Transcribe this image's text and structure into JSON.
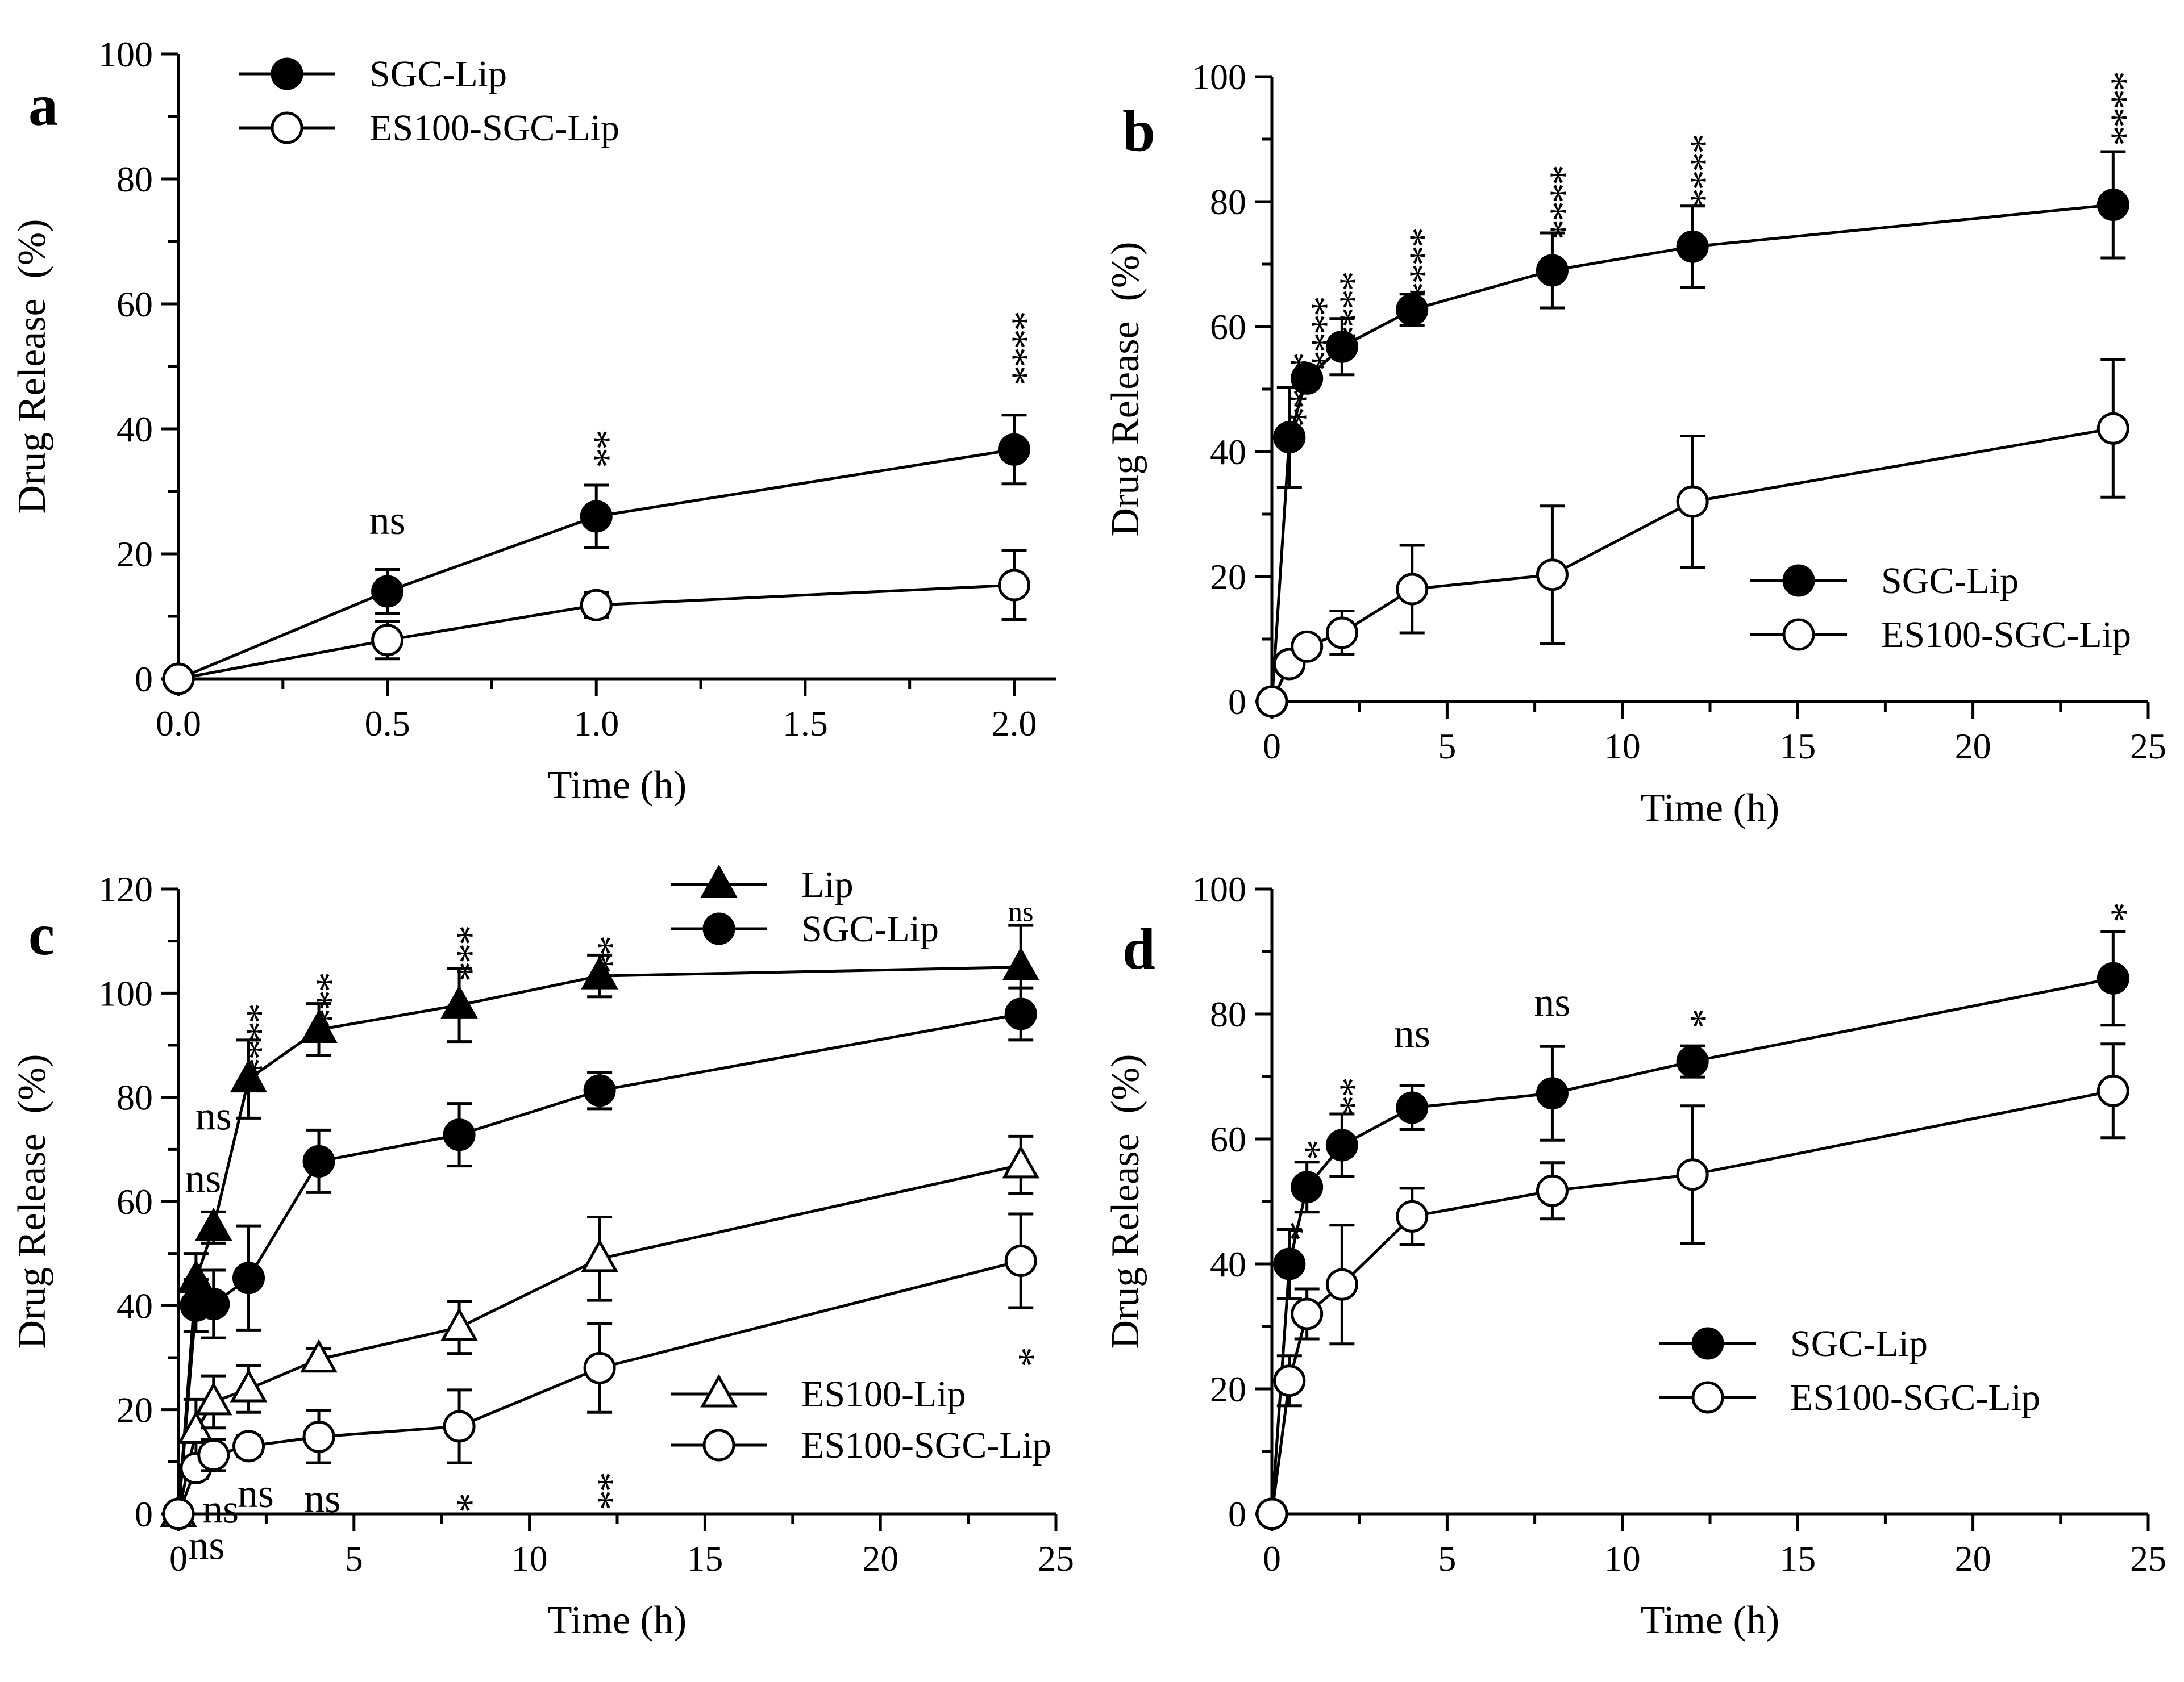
{
  "chart_data": [
    {
      "panel": "a",
      "type": "line",
      "xlabel": "Time (h)",
      "ylabel": "Drug Release  (%)",
      "xlim": [
        0,
        2.1
      ],
      "ylim": [
        0,
        100
      ],
      "xticks": [
        "0.0",
        "0.5",
        "1.0",
        "1.5",
        "2.0"
      ],
      "yticks": [
        "0",
        "20",
        "40",
        "60",
        "80",
        "100"
      ],
      "legend": "top-left",
      "series": [
        {
          "name": "SGC-Lip",
          "marker": "filled-circle",
          "x": [
            0,
            0.5,
            1,
            2
          ],
          "y": [
            0,
            14,
            26,
            36.7
          ],
          "err": [
            0,
            3.5,
            5,
            5.5
          ]
        },
        {
          "name": "ES100-SGC-Lip",
          "marker": "open-circle",
          "x": [
            0,
            0.5,
            1,
            2
          ],
          "y": [
            0,
            6.2,
            11.8,
            15
          ],
          "err": [
            0,
            3,
            2,
            5.5
          ]
        }
      ],
      "annotations": [
        {
          "text": "ns",
          "x": 0.5,
          "y": 25,
          "size": "normal"
        },
        {
          "text": "**",
          "x": 1,
          "y": 39,
          "size": "normal"
        },
        {
          "text": "****",
          "x": 2,
          "y": 58,
          "size": "normal"
        }
      ]
    },
    {
      "panel": "b",
      "type": "line",
      "xlabel": "Time (h)",
      "ylabel": "Drug Release  (%)",
      "xlim": [
        0,
        25
      ],
      "ylim": [
        0,
        100
      ],
      "xticks": [
        "0",
        "5",
        "10",
        "15",
        "20",
        "25"
      ],
      "yticks": [
        "0",
        "20",
        "40",
        "60",
        "80",
        "100"
      ],
      "legend": "bottom-right",
      "series": [
        {
          "name": "SGC-Lip",
          "marker": "filled-circle",
          "x": [
            0,
            0.5,
            1,
            2,
            4,
            8,
            12,
            24
          ],
          "y": [
            0,
            42.3,
            51.7,
            56.8,
            62.7,
            69,
            72.8,
            79.5
          ],
          "err": [
            0,
            8,
            0,
            4.5,
            2.5,
            6,
            6.5,
            8.5
          ]
        },
        {
          "name": "ES100-SGC-Lip",
          "marker": "open-circle",
          "x": [
            0,
            0.5,
            1,
            2,
            4,
            8,
            12,
            24
          ],
          "y": [
            0,
            6,
            8.8,
            11,
            18,
            20.3,
            32,
            43.7
          ],
          "err": [
            0,
            1.5,
            1,
            3.5,
            7,
            11,
            10.5,
            11
          ]
        }
      ],
      "annotations": [
        {
          "text": "****",
          "x": 0.6,
          "y": 55,
          "size": "normal"
        },
        {
          "text": "****",
          "x": 1.2,
          "y": 64,
          "size": "normal"
        },
        {
          "text": "****",
          "x": 2.0,
          "y": 68,
          "size": "normal"
        },
        {
          "text": "****",
          "x": 4,
          "y": 75,
          "size": "normal"
        },
        {
          "text": "****",
          "x": 8,
          "y": 85,
          "size": "normal"
        },
        {
          "text": "****",
          "x": 12,
          "y": 90,
          "size": "normal"
        },
        {
          "text": "****",
          "x": 24,
          "y": 100,
          "size": "normal"
        }
      ]
    },
    {
      "panel": "c",
      "type": "line",
      "xlabel": "Time (h)",
      "ylabel": "Drug Release  (%)",
      "xlim": [
        0,
        25
      ],
      "ylim": [
        0,
        120
      ],
      "xticks": [
        "0",
        "5",
        "10",
        "15",
        "20",
        "25"
      ],
      "yticks": [
        "0",
        "20",
        "40",
        "60",
        "80",
        "100",
        "120"
      ],
      "legend": "top-center and bottom-right",
      "series": [
        {
          "name": "Lip",
          "marker": "filled-triangle",
          "x": [
            0,
            0.5,
            1,
            2,
            4,
            8,
            12,
            24
          ],
          "y": [
            0,
            45,
            55,
            83.5,
            93,
            97.7,
            103.3,
            105
          ],
          "err": [
            0,
            5,
            3,
            7.5,
            5,
            7,
            4,
            8
          ]
        },
        {
          "name": "SGC-Lip",
          "marker": "filled-circle",
          "x": [
            0,
            0.5,
            1,
            2,
            4,
            8,
            12,
            24
          ],
          "y": [
            0,
            40,
            40.3,
            45.3,
            67.7,
            72.8,
            81.3,
            96
          ],
          "err": [
            0,
            5,
            6.5,
            10,
            6,
            6,
            3.5,
            5
          ]
        },
        {
          "name": "ES100-Lip",
          "marker": "open-triangle",
          "x": [
            0,
            0.5,
            1,
            2,
            4,
            8,
            12,
            24
          ],
          "y": [
            0,
            16,
            21.5,
            24,
            29.7,
            35.8,
            49,
            67
          ],
          "err": [
            0,
            6,
            5,
            4.5,
            2,
            5,
            8,
            5.5
          ]
        },
        {
          "name": "ES100-SGC-Lip",
          "marker": "open-circle",
          "x": [
            0,
            0.5,
            1,
            2,
            4,
            8,
            12,
            24
          ],
          "y": [
            0,
            8.8,
            11.3,
            13,
            14.8,
            16.8,
            28,
            48.6
          ],
          "err": [
            0,
            2,
            3,
            2,
            5,
            7,
            8.5,
            9
          ]
        }
      ],
      "annotations": [
        {
          "text": "ns",
          "x": 1.0,
          "y": 76,
          "size": "normal"
        },
        {
          "text": "ns",
          "x": 0.7,
          "y": 64,
          "size": "normal"
        },
        {
          "text": "****",
          "x": 2,
          "y": 97,
          "size": "normal"
        },
        {
          "text": "***",
          "x": 4,
          "y": 103,
          "size": "normal"
        },
        {
          "text": "***",
          "x": 8,
          "y": 112,
          "size": "normal"
        },
        {
          "text": "**",
          "x": 12,
          "y": 110,
          "size": "normal"
        },
        {
          "text": "ns",
          "x": 24,
          "y": 116,
          "size": "small"
        },
        {
          "text": "ns",
          "x": 1.2,
          "y": 0.5,
          "size": "normal"
        },
        {
          "text": "ns",
          "x": 2.2,
          "y": 3.5,
          "size": "normal"
        },
        {
          "text": "ns",
          "x": 4.1,
          "y": 2.5,
          "size": "normal"
        },
        {
          "text": "ns",
          "x": 0.8,
          "y": -6.5,
          "size": "normal"
        },
        {
          "text": "*",
          "x": 8,
          "y": 3,
          "size": "normal"
        },
        {
          "text": "**",
          "x": 12,
          "y": 7,
          "size": "normal"
        },
        {
          "text": "*",
          "x": 24,
          "y": 31,
          "size": "normal"
        }
      ],
      "legend_groups": [
        {
          "position": "top",
          "series": [
            "Lip",
            "SGC-Lip"
          ]
        },
        {
          "position": "bottom-right",
          "series": [
            "ES100-Lip",
            "ES100-SGC-Lip"
          ]
        }
      ]
    },
    {
      "panel": "d",
      "type": "line",
      "xlabel": "Time (h)",
      "ylabel": "Drug Release  (%)",
      "xlim": [
        0,
        25
      ],
      "ylim": [
        0,
        100
      ],
      "xticks": [
        "0",
        "5",
        "10",
        "15",
        "20",
        "25"
      ],
      "yticks": [
        "0",
        "20",
        "40",
        "60",
        "80",
        "100"
      ],
      "legend": "bottom-center",
      "series": [
        {
          "name": "SGC-Lip",
          "marker": "filled-circle",
          "x": [
            0,
            0.5,
            1,
            2,
            4,
            8,
            12,
            24
          ],
          "y": [
            0,
            40,
            52.3,
            59,
            65,
            67.3,
            72.4,
            85.7
          ],
          "err": [
            0,
            5.5,
            4,
            5,
            3.5,
            7.5,
            2.5,
            7.5
          ]
        },
        {
          "name": "ES100-SGC-Lip",
          "marker": "open-circle",
          "x": [
            0,
            0.5,
            1,
            2,
            4,
            8,
            12,
            24
          ],
          "y": [
            0,
            21.3,
            32,
            36.7,
            47.6,
            51.7,
            54.3,
            67.7
          ],
          "err": [
            0,
            4,
            4,
            9.5,
            4.5,
            4.5,
            11,
            7.5
          ]
        }
      ],
      "annotations": [
        {
          "text": "*",
          "x": 0.5,
          "y": 46,
          "size": "normal"
        },
        {
          "text": "*",
          "x": 1,
          "y": 59,
          "size": "normal"
        },
        {
          "text": "**",
          "x": 2,
          "y": 69,
          "size": "normal"
        },
        {
          "text": "ns",
          "x": 4,
          "y": 76.5,
          "size": "normal"
        },
        {
          "text": "ns",
          "x": 8,
          "y": 81.5,
          "size": "normal"
        },
        {
          "text": "*",
          "x": 12,
          "y": 80,
          "size": "normal"
        },
        {
          "text": "*",
          "x": 24,
          "y": 97,
          "size": "normal"
        }
      ]
    }
  ]
}
